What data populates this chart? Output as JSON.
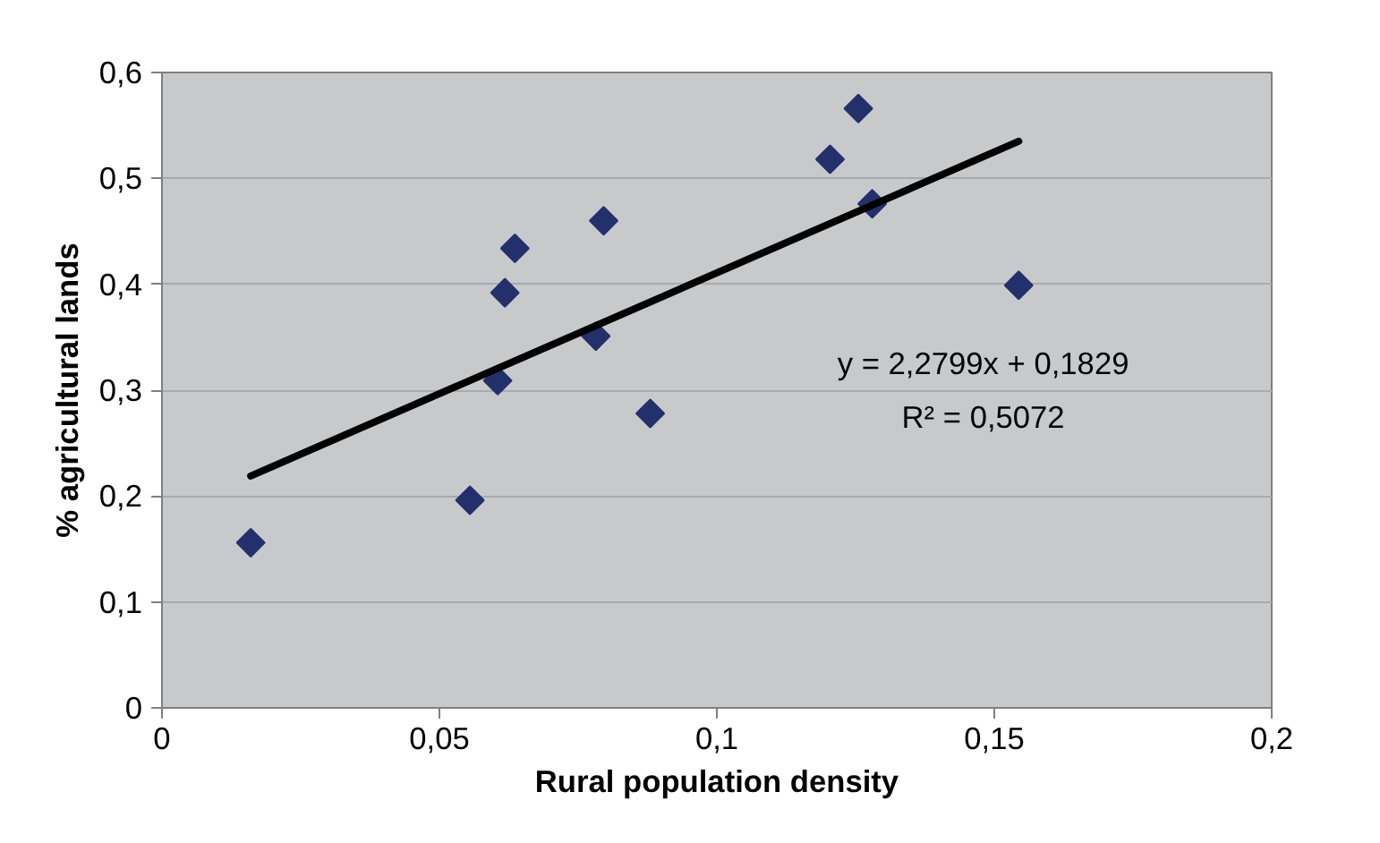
{
  "chart_data": {
    "type": "scatter",
    "xlabel": "Rural population density",
    "ylabel": "% agricultural lands",
    "xlim": [
      0,
      0.2
    ],
    "ylim": [
      0,
      0.6
    ],
    "xticks": [
      0,
      {
        "value": 0.05,
        "label": "0,05"
      },
      {
        "value": 0.1,
        "label": "0,1"
      },
      {
        "value": 0.15,
        "label": "0,15"
      },
      {
        "value": 0.2,
        "label": "0,2"
      }
    ],
    "yticks": [
      0,
      {
        "value": 0.1,
        "label": "0,1"
      },
      {
        "value": 0.2,
        "label": "0,2"
      },
      {
        "value": 0.3,
        "label": "0,3"
      },
      {
        "value": 0.4,
        "label": "0,4"
      },
      {
        "value": 0.5,
        "label": "0,5"
      },
      {
        "value": 0.6,
        "label": "0,6"
      }
    ],
    "grid": "y",
    "series": [
      {
        "marker": "diamond",
        "color": "#23306b",
        "x": [
          0.016,
          0.0555,
          0.0605,
          0.0618,
          0.0636,
          0.0796,
          0.0782,
          0.088,
          0.1204,
          0.1255,
          0.128,
          0.1544
        ],
        "values": [
          0.156,
          0.196,
          0.309,
          0.392,
          0.434,
          0.46,
          0.351,
          0.278,
          0.518,
          0.566,
          0.476,
          0.399
        ]
      },
      {
        "type": "line",
        "marker": "none",
        "color": "#000000",
        "x": [
          0.016,
          0.1544
        ],
        "values": [
          0.219,
          0.535
        ]
      }
    ],
    "annotations": [
      "y = 2,2799x + 0,1829",
      "R² = 0,5072"
    ]
  }
}
